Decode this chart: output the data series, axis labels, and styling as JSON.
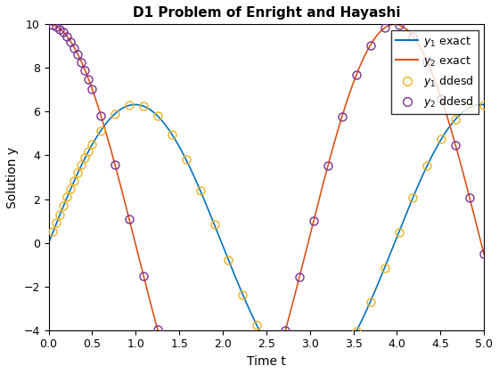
{
  "title": "D1 Problem of Enright and Hayashi",
  "xlabel": "Time t",
  "ylabel": "Solution y",
  "xlim": [
    0,
    5
  ],
  "ylim": [
    -4,
    10
  ],
  "xticks": [
    0,
    0.5,
    1,
    1.5,
    2,
    2.5,
    3,
    3.5,
    4,
    4.5,
    5
  ],
  "yticks": [
    -4,
    -2,
    0,
    2,
    4,
    6,
    8,
    10
  ],
  "line_y1_color": "#0072BD",
  "line_y2_color": "#D95319",
  "marker_y1_color": "#EDB120",
  "marker_y2_color": "#7E2F8E",
  "title_fontsize": 11,
  "label_fontsize": 10,
  "n_exact": 2000,
  "background_color": "#ffffff"
}
